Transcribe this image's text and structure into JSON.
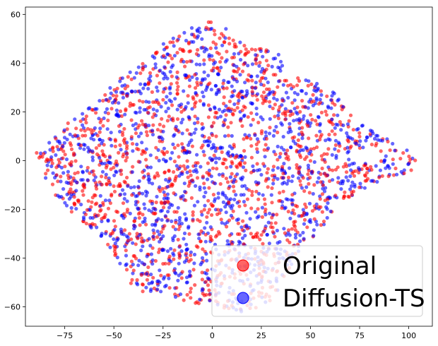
{
  "chart_data": {
    "type": "scatter",
    "title": "",
    "xlabel": "",
    "ylabel": "",
    "xlim": [
      -95,
      112
    ],
    "ylim": [
      -68,
      63
    ],
    "x_ticks": [
      -75,
      -50,
      -25,
      0,
      25,
      50,
      75,
      100
    ],
    "x_tick_labels": [
      "−75",
      "−50",
      "−25",
      "0",
      "25",
      "50",
      "75",
      "100"
    ],
    "y_ticks": [
      -60,
      -40,
      -20,
      0,
      20,
      40,
      60
    ],
    "y_tick_labels": [
      "−60",
      "−40",
      "−20",
      "0",
      "20",
      "40",
      "60"
    ],
    "grid": false,
    "legend_position": "lower right",
    "series": [
      {
        "name": "Original",
        "color": "#ff0000",
        "alpha": 0.6
      },
      {
        "name": "Diffusion-TS",
        "color": "#0000ff",
        "alpha": 0.6
      }
    ],
    "cluster_outline": [
      [
        -90,
        4
      ],
      [
        -84,
        8
      ],
      [
        -76,
        14
      ],
      [
        -68,
        18
      ],
      [
        -60,
        24
      ],
      [
        -52,
        30
      ],
      [
        -44,
        36
      ],
      [
        -36,
        40
      ],
      [
        -28,
        47
      ],
      [
        -18,
        51
      ],
      [
        -12,
        54
      ],
      [
        -6,
        56
      ],
      [
        0,
        58
      ],
      [
        4,
        57
      ],
      [
        10,
        54
      ],
      [
        16,
        50
      ],
      [
        22,
        46
      ],
      [
        28,
        47
      ],
      [
        34,
        44
      ],
      [
        36,
        38
      ],
      [
        34,
        34
      ],
      [
        44,
        34
      ],
      [
        52,
        32
      ],
      [
        60,
        30
      ],
      [
        68,
        22
      ],
      [
        74,
        16
      ],
      [
        82,
        12
      ],
      [
        88,
        10
      ],
      [
        96,
        6
      ],
      [
        104,
        2
      ],
      [
        104,
        -3
      ],
      [
        96,
        -6
      ],
      [
        86,
        -8
      ],
      [
        78,
        -12
      ],
      [
        68,
        -16
      ],
      [
        60,
        -22
      ],
      [
        54,
        -30
      ],
      [
        46,
        -34
      ],
      [
        40,
        -44
      ],
      [
        34,
        -54
      ],
      [
        28,
        -60
      ],
      [
        18,
        -62
      ],
      [
        8,
        -62
      ],
      [
        -2,
        -60
      ],
      [
        -12,
        -58
      ],
      [
        -20,
        -56
      ],
      [
        -30,
        -54
      ],
      [
        -38,
        -54
      ],
      [
        -44,
        -48
      ],
      [
        -50,
        -38
      ],
      [
        -56,
        -32
      ],
      [
        -64,
        -26
      ],
      [
        -72,
        -22
      ],
      [
        -80,
        -14
      ],
      [
        -86,
        -6
      ],
      [
        -92,
        2
      ]
    ],
    "point_density_note": ""
  }
}
